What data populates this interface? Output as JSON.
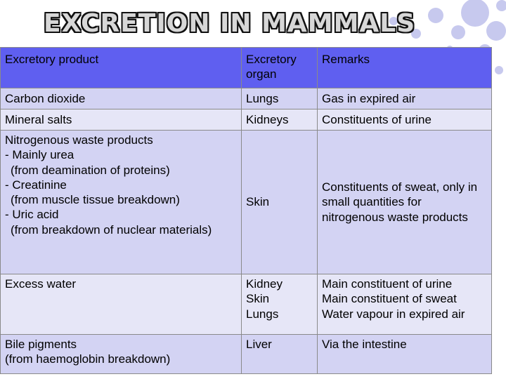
{
  "title": "EXCRETION IN MAMMALS",
  "colors": {
    "header_bg": "#5f5ff0",
    "row_dark": "#d3d3f3",
    "row_light": "#e6e6f7",
    "bubble": "#c7c9ee"
  },
  "table": {
    "headers": [
      "Excretory product",
      "Excretory organ",
      "Remarks"
    ],
    "rows": [
      {
        "product": [
          "Carbon dioxide"
        ],
        "organ": [
          "Lungs"
        ],
        "remarks": [
          "Gas in expired air"
        ]
      },
      {
        "product": [
          "Mineral salts"
        ],
        "organ": [
          "Kidneys"
        ],
        "remarks": [
          "Constituents of urine"
        ]
      },
      {
        "product": [
          "Nitrogenous waste products",
          "- Mainly urea",
          "(from deamination of proteins)",
          "- Creatinine",
          "(from muscle tissue breakdown)",
          "- Uric acid",
          "(from breakdown of nuclear materials)"
        ],
        "organ": [
          "Skin"
        ],
        "remarks": [
          "Constituents of sweat, only in small quantities for nitrogenous waste products"
        ]
      },
      {
        "product": [
          "Excess water"
        ],
        "organ": [
          "Kidney",
          "Skin",
          "Lungs"
        ],
        "remarks": [
          "Main constituent of urine",
          "Main constituent of sweat",
          "Water vapour in expired air"
        ]
      },
      {
        "product": [
          "Bile pigments",
          "(from haemoglobin breakdown)"
        ],
        "organ": [
          "Liver"
        ],
        "remarks": [
          "Via the intestine"
        ]
      }
    ]
  }
}
